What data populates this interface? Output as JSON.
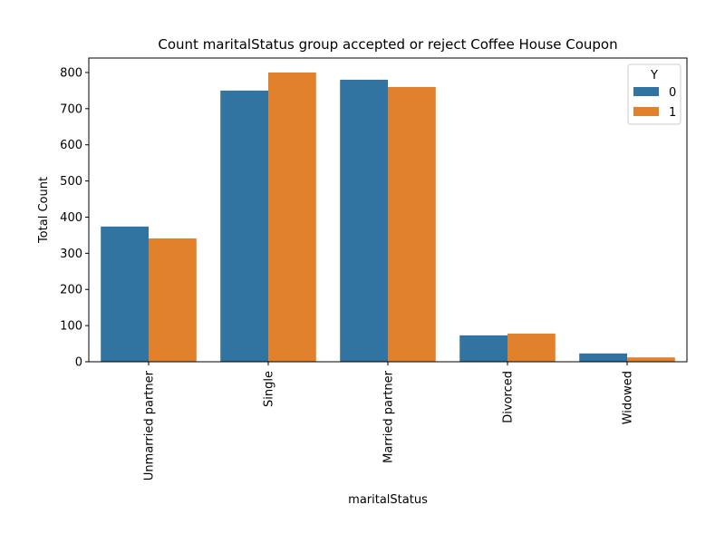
{
  "chart_data": {
    "type": "bar",
    "title": "Count maritalStatus group accepted or reject Coffee House Coupon",
    "xlabel": "maritalStatus",
    "ylabel": "Total Count",
    "categories": [
      "Unmarried partner",
      "Single",
      "Married partner",
      "Divorced",
      "Widowed"
    ],
    "series": [
      {
        "name": "0",
        "values": [
          374,
          750,
          780,
          73,
          23
        ],
        "color": "#3274a1"
      },
      {
        "name": "1",
        "values": [
          341,
          800,
          760,
          78,
          12
        ],
        "color": "#e1812c"
      }
    ],
    "ylim": [
      0,
      840
    ],
    "yticks": [
      0,
      100,
      200,
      300,
      400,
      500,
      600,
      700,
      800
    ],
    "legend": {
      "title": "Y",
      "position": "top-right"
    },
    "grid": false
  }
}
